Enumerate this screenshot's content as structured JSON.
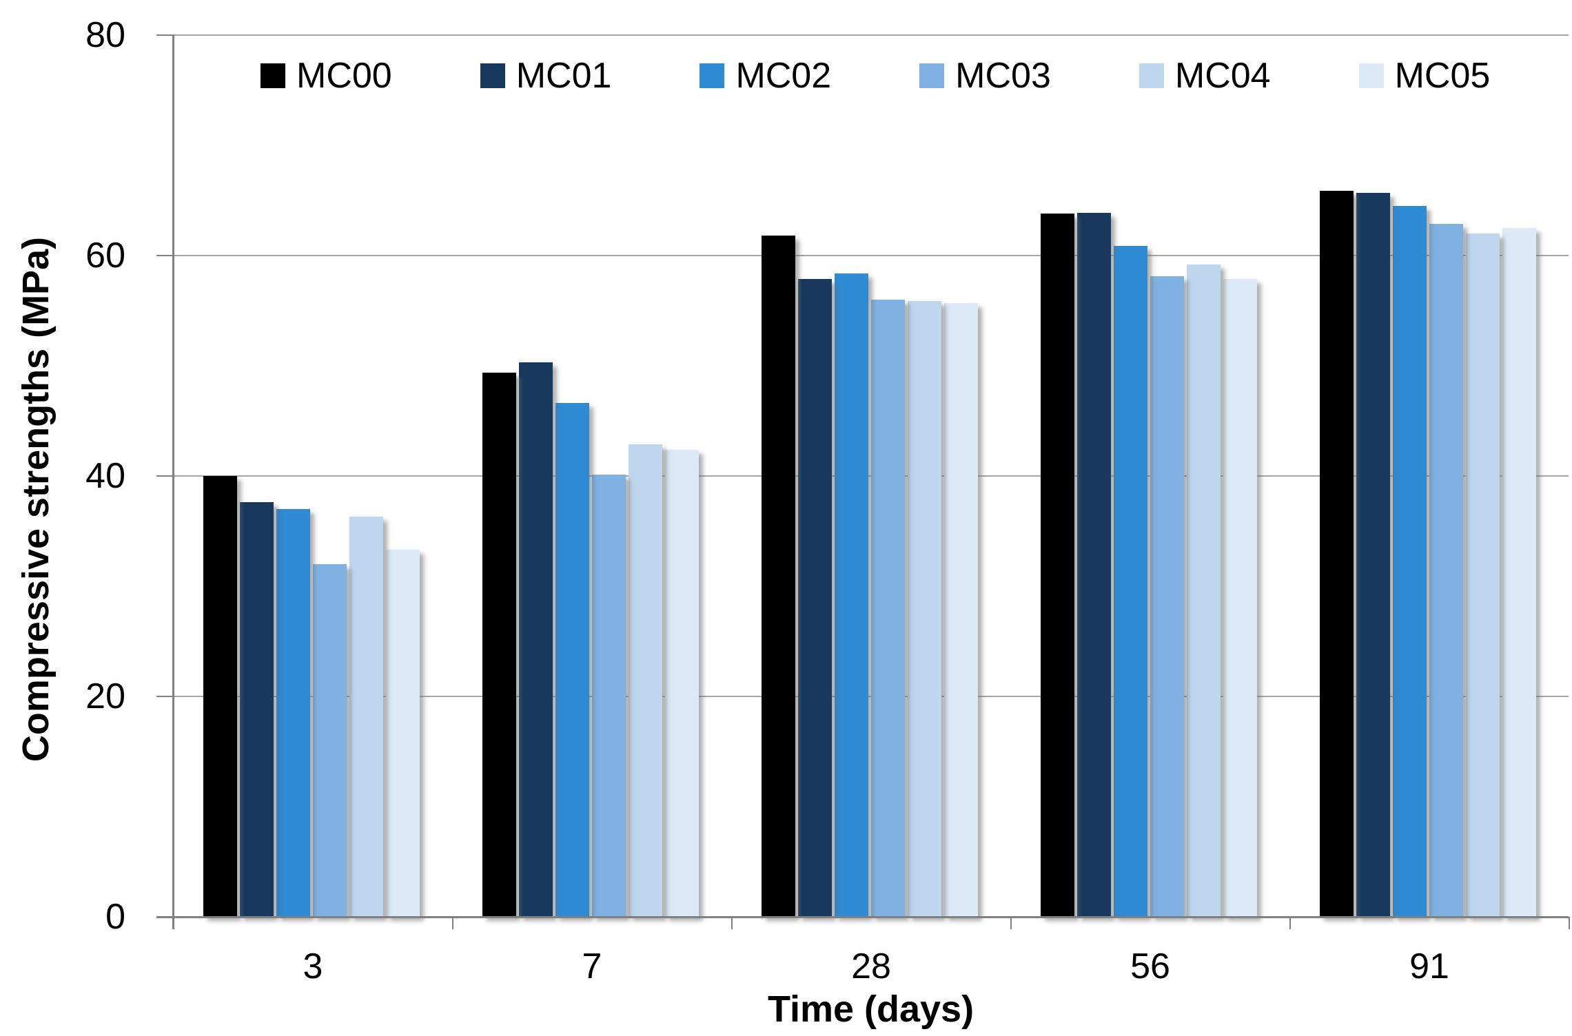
{
  "chart_data": {
    "type": "bar",
    "title": "",
    "xlabel": "Time (days)",
    "ylabel": "Compressive strengths (MPa)",
    "categories": [
      "3",
      "7",
      "28",
      "56",
      "91"
    ],
    "series": [
      {
        "name": "MC00",
        "color": "#000000",
        "values": [
          40.0,
          49.4,
          61.8,
          63.8,
          65.9
        ]
      },
      {
        "name": "MC01",
        "color": "#16395D",
        "values": [
          37.6,
          50.3,
          57.9,
          63.9,
          65.7
        ]
      },
      {
        "name": "MC02",
        "color": "#2E8BD4",
        "values": [
          37.0,
          46.6,
          58.4,
          60.9,
          64.5
        ]
      },
      {
        "name": "MC03",
        "color": "#7FB2E3",
        "values": [
          32.0,
          40.1,
          56.0,
          58.1,
          62.9
        ]
      },
      {
        "name": "MC04",
        "color": "#BFD7EE",
        "values": [
          36.3,
          42.9,
          55.9,
          59.2,
          62.0
        ]
      },
      {
        "name": "MC05",
        "color": "#DCE9F6",
        "values": [
          33.3,
          42.4,
          55.7,
          57.9,
          62.5
        ]
      }
    ],
    "ylim": [
      0,
      80
    ],
    "yticks": [
      0,
      20,
      40,
      60,
      80
    ],
    "grid": true,
    "legend_position": "top"
  }
}
